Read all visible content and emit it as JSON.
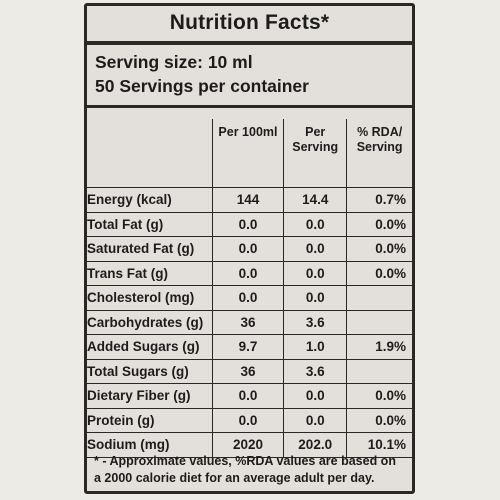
{
  "title": "Nutrition Facts*",
  "serving_size": "Serving size: 10 ml",
  "servings_per_container": "50 Servings per container",
  "table": {
    "headers": [
      "",
      "Per 100ml",
      "Per\nServing",
      "% RDA/\nServing"
    ],
    "rows": [
      {
        "name": "Energy (kcal)",
        "per100": "144",
        "serving": "14.4",
        "rda": "0.7%"
      },
      {
        "name": "Total Fat (g)",
        "per100": "0.0",
        "serving": "0.0",
        "rda": "0.0%"
      },
      {
        "name": "Saturated Fat (g)",
        "per100": "0.0",
        "serving": "0.0",
        "rda": "0.0%"
      },
      {
        "name": "Trans Fat (g)",
        "per100": "0.0",
        "serving": "0.0",
        "rda": "0.0%"
      },
      {
        "name": "Cholesterol (mg)",
        "per100": "0.0",
        "serving": "0.0",
        "rda": ""
      },
      {
        "name": "Carbohydrates (g)",
        "per100": "36",
        "serving": "3.6",
        "rda": ""
      },
      {
        "name": "Added Sugars (g)",
        "per100": "9.7",
        "serving": "1.0",
        "rda": "1.9%"
      },
      {
        "name": "Total Sugars (g)",
        "per100": "36",
        "serving": "3.6",
        "rda": ""
      },
      {
        "name": "Dietary Fiber (g)",
        "per100": "0.0",
        "serving": "0.0",
        "rda": "0.0%"
      },
      {
        "name": "Protein (g)",
        "per100": "0.0",
        "serving": "0.0",
        "rda": "0.0%"
      },
      {
        "name": "Sodium (mg)",
        "per100": "2020",
        "serving": "202.0",
        "rda": "10.1%"
      }
    ]
  },
  "footnote": "* - Approximate values, %RDA values are based on a 2000 calorie diet for an average adult per day."
}
